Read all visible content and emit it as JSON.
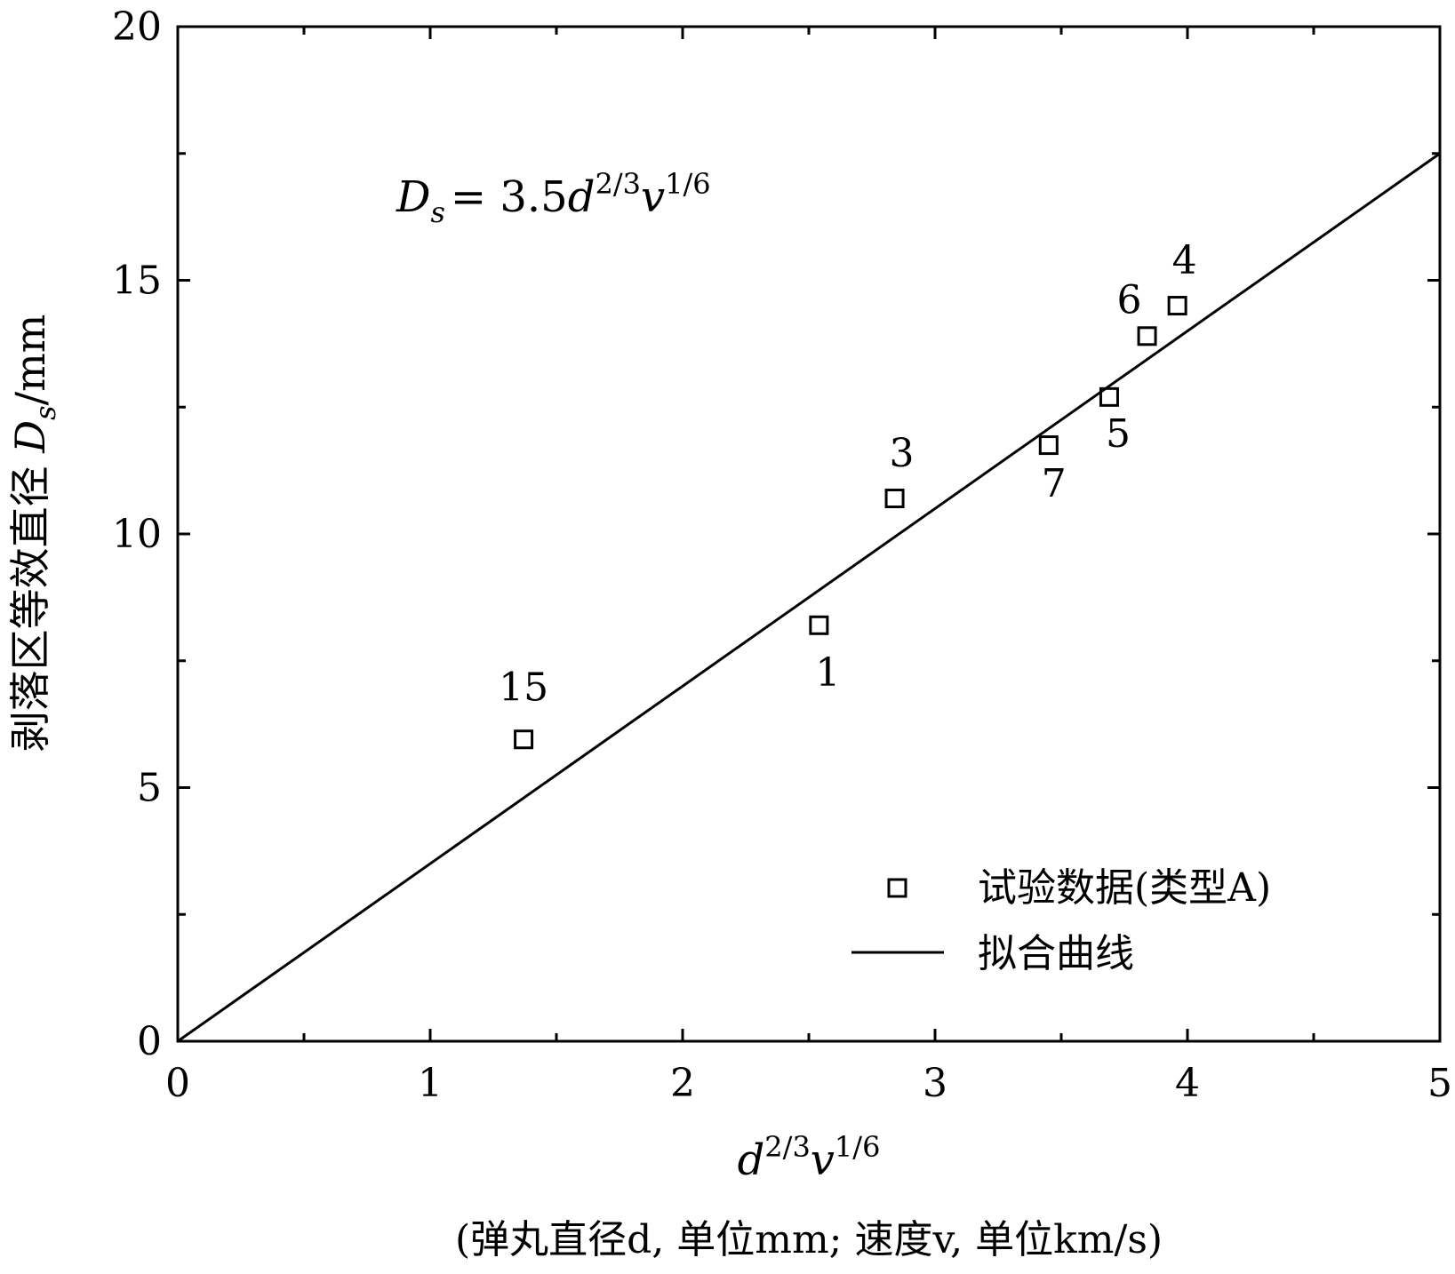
{
  "chart_data": {
    "type": "scatter",
    "xlim": [
      0,
      5
    ],
    "ylim": [
      0,
      20
    ],
    "x_ticks": [
      0,
      1,
      2,
      3,
      4,
      5
    ],
    "x_minor_ticks": [
      0.5,
      1.5,
      2.5,
      3.5,
      4.5
    ],
    "y_ticks": [
      0,
      5,
      10,
      15,
      20
    ],
    "y_minor_ticks": [
      2.5,
      7.5,
      12.5,
      17.5
    ],
    "grid": false,
    "legend_position": "bottom-right",
    "equation": {
      "lhs": "D",
      "lhs_sub": "s",
      "rhs_coef": "= 3.5",
      "base1": "d",
      "exp1": "2/3",
      "base2": "v",
      "exp2": "1/6"
    },
    "xlabel": {
      "base1": "d",
      "exp1": "2/3",
      "base2": "v",
      "exp2": "1/6",
      "line2": "(弹丸直径d, 单位mm; 速度v, 单位km/s)"
    },
    "ylabel": {
      "text": "剥落区等效直径 ",
      "var": "D",
      "sub": "s",
      "unit": "/mm"
    },
    "series": [
      {
        "name": "试验数据(类型A)",
        "kind": "scatter",
        "marker": "square-open",
        "points": [
          {
            "x": 1.37,
            "y": 5.95,
            "label": "15"
          },
          {
            "x": 2.54,
            "y": 8.2,
            "label": "1"
          },
          {
            "x": 2.84,
            "y": 10.7,
            "label": "3"
          },
          {
            "x": 3.45,
            "y": 11.75,
            "label": "7"
          },
          {
            "x": 3.69,
            "y": 12.7,
            "label": "5"
          },
          {
            "x": 3.84,
            "y": 13.9,
            "label": "6"
          },
          {
            "x": 3.96,
            "y": 14.5,
            "label": "4"
          }
        ]
      },
      {
        "name": "拟合曲线",
        "kind": "line",
        "slope": 3.5,
        "x_range": [
          0,
          5
        ]
      }
    ]
  }
}
